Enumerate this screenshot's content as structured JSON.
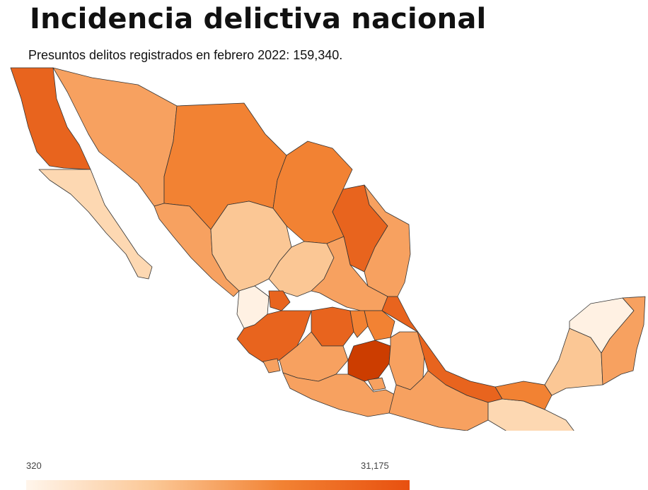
{
  "title": "Incidencia delictiva nacional",
  "subtitle": "Presuntos delitos registrados en febrero 2022: 159,340.",
  "legend": {
    "min_label": "320",
    "max_label": "31,175",
    "min_color": "#fff5eb",
    "max_color": "#e8500f"
  },
  "map_colors": {
    "darkest": "#cc3d00",
    "dark": "#e8641e",
    "medium_dark": "#f28233",
    "medium": "#f7a160",
    "light": "#fbc795",
    "lighter": "#fdd8b2",
    "lightest": "#fff1e3"
  }
}
